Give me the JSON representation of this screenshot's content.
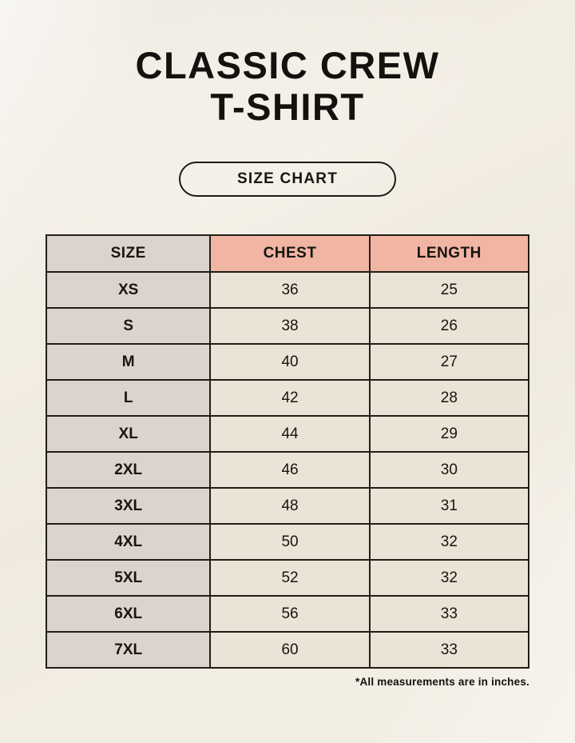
{
  "page": {
    "title_line1": "CLASSIC CREW",
    "title_line2": "T-SHIRT",
    "badge_label": "SIZE CHART",
    "footnote": "*All measurements are in inches."
  },
  "table": {
    "columns": [
      "SIZE",
      "CHEST",
      "LENGTH"
    ],
    "rows": [
      {
        "size": "XS",
        "chest": "36",
        "length": "25"
      },
      {
        "size": "S",
        "chest": "38",
        "length": "26"
      },
      {
        "size": "M",
        "chest": "40",
        "length": "27"
      },
      {
        "size": "L",
        "chest": "42",
        "length": "28"
      },
      {
        "size": "XL",
        "chest": "44",
        "length": "29"
      },
      {
        "size": "2XL",
        "chest": "46",
        "length": "30"
      },
      {
        "size": "3XL",
        "chest": "48",
        "length": "31"
      },
      {
        "size": "4XL",
        "chest": "50",
        "length": "32"
      },
      {
        "size": "5XL",
        "chest": "52",
        "length": "32"
      },
      {
        "size": "6XL",
        "chest": "56",
        "length": "33"
      },
      {
        "size": "7XL",
        "chest": "60",
        "length": "33"
      }
    ]
  },
  "colors": {
    "background": "#f3eee4",
    "accent_header": "#f1b5a3",
    "size_column": "#dbd3cc",
    "value_cell": "#eae3d6",
    "border": "#211e1a",
    "text": "#14110e"
  },
  "chart_data": {
    "type": "table",
    "title": "CLASSIC CREW T-SHIRT — SIZE CHART",
    "columns": [
      "SIZE",
      "CHEST",
      "LENGTH"
    ],
    "units": "inches",
    "categories": [
      "XS",
      "S",
      "M",
      "L",
      "XL",
      "2XL",
      "3XL",
      "4XL",
      "5XL",
      "6XL",
      "7XL"
    ],
    "series": [
      {
        "name": "CHEST",
        "values": [
          36,
          38,
          40,
          42,
          44,
          46,
          48,
          50,
          52,
          56,
          60
        ]
      },
      {
        "name": "LENGTH",
        "values": [
          25,
          26,
          27,
          28,
          29,
          30,
          31,
          32,
          32,
          33,
          33
        ]
      }
    ],
    "annotations": [
      "*All measurements are in inches."
    ]
  }
}
